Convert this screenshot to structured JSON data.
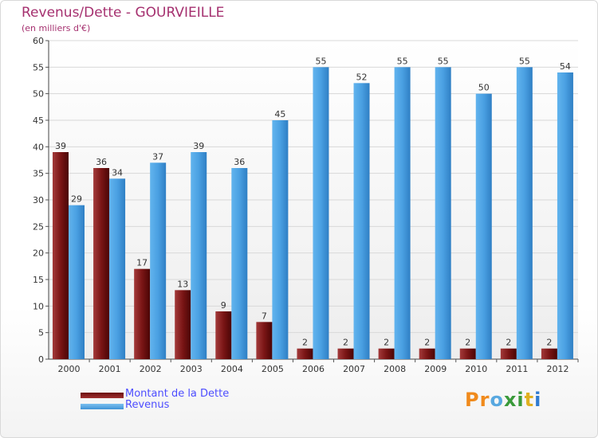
{
  "chart_data": {
    "type": "bar",
    "title": "Revenus/Dette - GOURVIEILLE",
    "subtitle": "(en milliers d'€)",
    "categories": [
      "2000",
      "2001",
      "2002",
      "2003",
      "2004",
      "2005",
      "2006",
      "2007",
      "2008",
      "2009",
      "2010",
      "2011",
      "2012"
    ],
    "series": [
      {
        "name": "Montant de la Dette",
        "values": [
          39,
          36,
          17,
          13,
          9,
          7,
          2,
          2,
          2,
          2,
          2,
          2,
          2
        ],
        "color": "#8b1a1a"
      },
      {
        "name": "Revenus",
        "values": [
          29,
          34,
          37,
          39,
          36,
          45,
          55,
          52,
          55,
          55,
          50,
          55,
          54
        ],
        "color": "#4fa3e3"
      }
    ],
    "ylim": [
      0,
      60
    ],
    "yticks": [
      0,
      5,
      10,
      15,
      20,
      25,
      30,
      35,
      40,
      45,
      50,
      55,
      60
    ],
    "grid": true,
    "legend": "bottom-left"
  },
  "logo": {
    "letters": [
      "P",
      "r",
      "o",
      "x",
      "i",
      "t",
      "i"
    ],
    "colors": [
      "#f08a1c",
      "#f08a1c",
      "#58a8e0",
      "#3a9a3a",
      "#3a9a3a",
      "#e0b020",
      "#2f7bd0"
    ]
  }
}
